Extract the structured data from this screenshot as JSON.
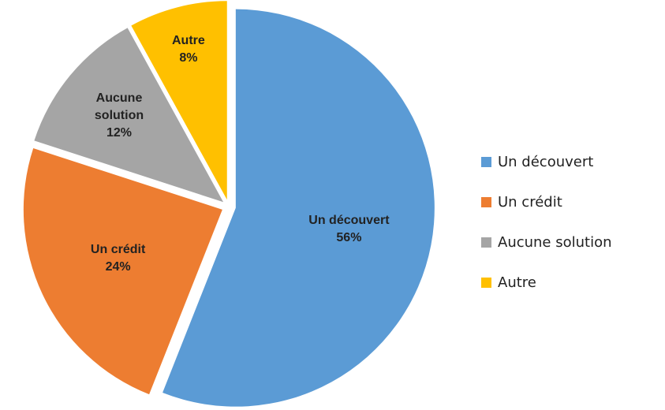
{
  "chart_data": {
    "type": "pie",
    "categories": [
      "Un découvert",
      "Un crédit",
      "Aucune solution",
      "Autre"
    ],
    "values": [
      56,
      24,
      12,
      8
    ],
    "value_labels": [
      "56%",
      "24%",
      "12%",
      "8%"
    ],
    "colors": [
      "#5b9bd5",
      "#ed7d31",
      "#a5a5a5",
      "#ffc000"
    ],
    "legend": "right"
  }
}
